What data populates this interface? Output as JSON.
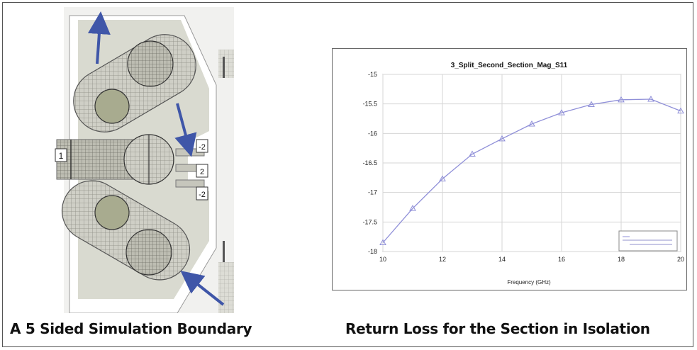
{
  "diagram": {
    "ports": {
      "p1": "1",
      "p2": "-2",
      "p3": "2",
      "p4": "-2"
    },
    "colors": {
      "arrow": "#3f56a8",
      "boundary": "#d9dad0",
      "metal": "#b8b8ad"
    }
  },
  "captions": {
    "left": "A 5 Sided Simulation Boundary",
    "right": "Return Loss for the Section in Isolation"
  },
  "chart_data": {
    "type": "line",
    "title": "3_Split_Second_Section_Mag_S11",
    "xlabel": "Frequency (GHz)",
    "ylabel": "",
    "xlim": [
      10,
      20
    ],
    "ylim": [
      -18,
      -15
    ],
    "xticks": [
      "10",
      "12",
      "14",
      "16",
      "18",
      "20"
    ],
    "yticks": [
      "-15",
      "-15.5",
      "-16",
      "-16.5",
      "-17",
      "-17.5",
      "-18"
    ],
    "grid": true,
    "legend_position": "bottom-right",
    "series": [
      {
        "color": "#8f8fd8",
        "x": [
          10,
          11,
          12,
          13,
          14,
          15,
          16,
          17,
          18,
          19,
          20
        ],
        "y": [
          -17.85,
          -17.27,
          -16.77,
          -16.35,
          -16.09,
          -15.84,
          -15.65,
          -15.51,
          -15.43,
          -15.42,
          -15.62
        ]
      }
    ]
  }
}
